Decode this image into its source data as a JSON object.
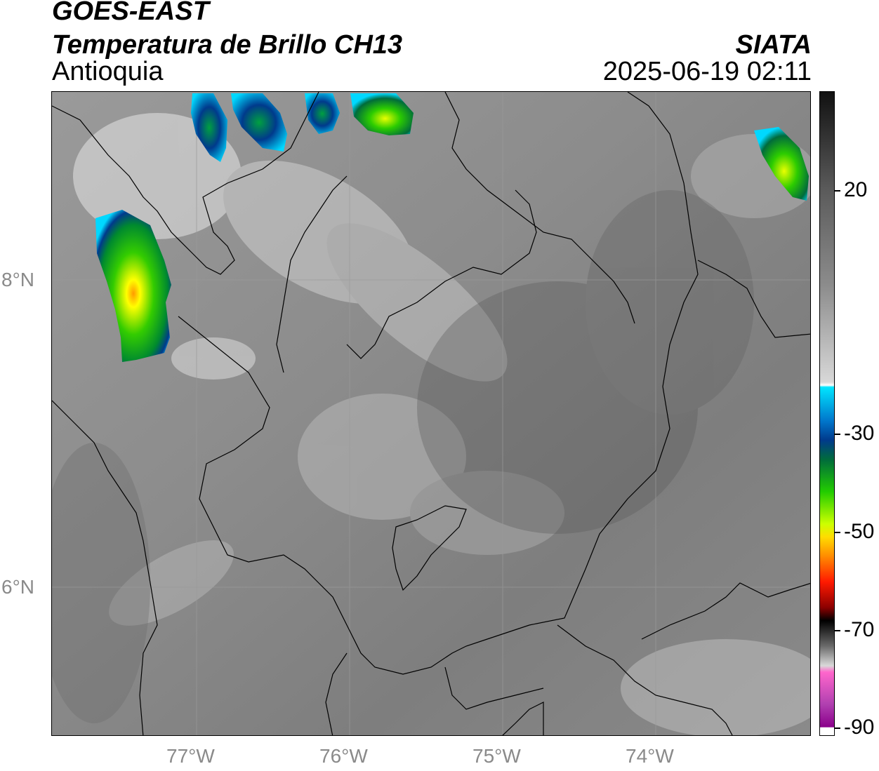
{
  "header": {
    "satellite": "GOES-EAST",
    "product": "Temperatura de Brillo CH13",
    "region": "Antioquia",
    "organization": "SIATA",
    "timestamp": "2025-06-19 02:11"
  },
  "map": {
    "latitude_labels": [
      "8°N",
      "6°N"
    ],
    "longitude_labels": [
      "77°W",
      "76°W",
      "75°W",
      "74°W"
    ],
    "background_color": "#7a7a7a",
    "gridline_color": "#9a9a9a",
    "border_color": "#000000"
  },
  "colorbar": {
    "tick_labels": [
      "20",
      "-30",
      "-50",
      "-70",
      "-90"
    ],
    "palette": [
      "#000000",
      "#7a7a7a",
      "#ffffff",
      "#00e5ff",
      "#003a8c",
      "#00c800",
      "#ffff00",
      "#ff8c00",
      "#ff0000",
      "#000000",
      "#d9d9d9",
      "#ff66cc",
      "#8b008b"
    ]
  }
}
